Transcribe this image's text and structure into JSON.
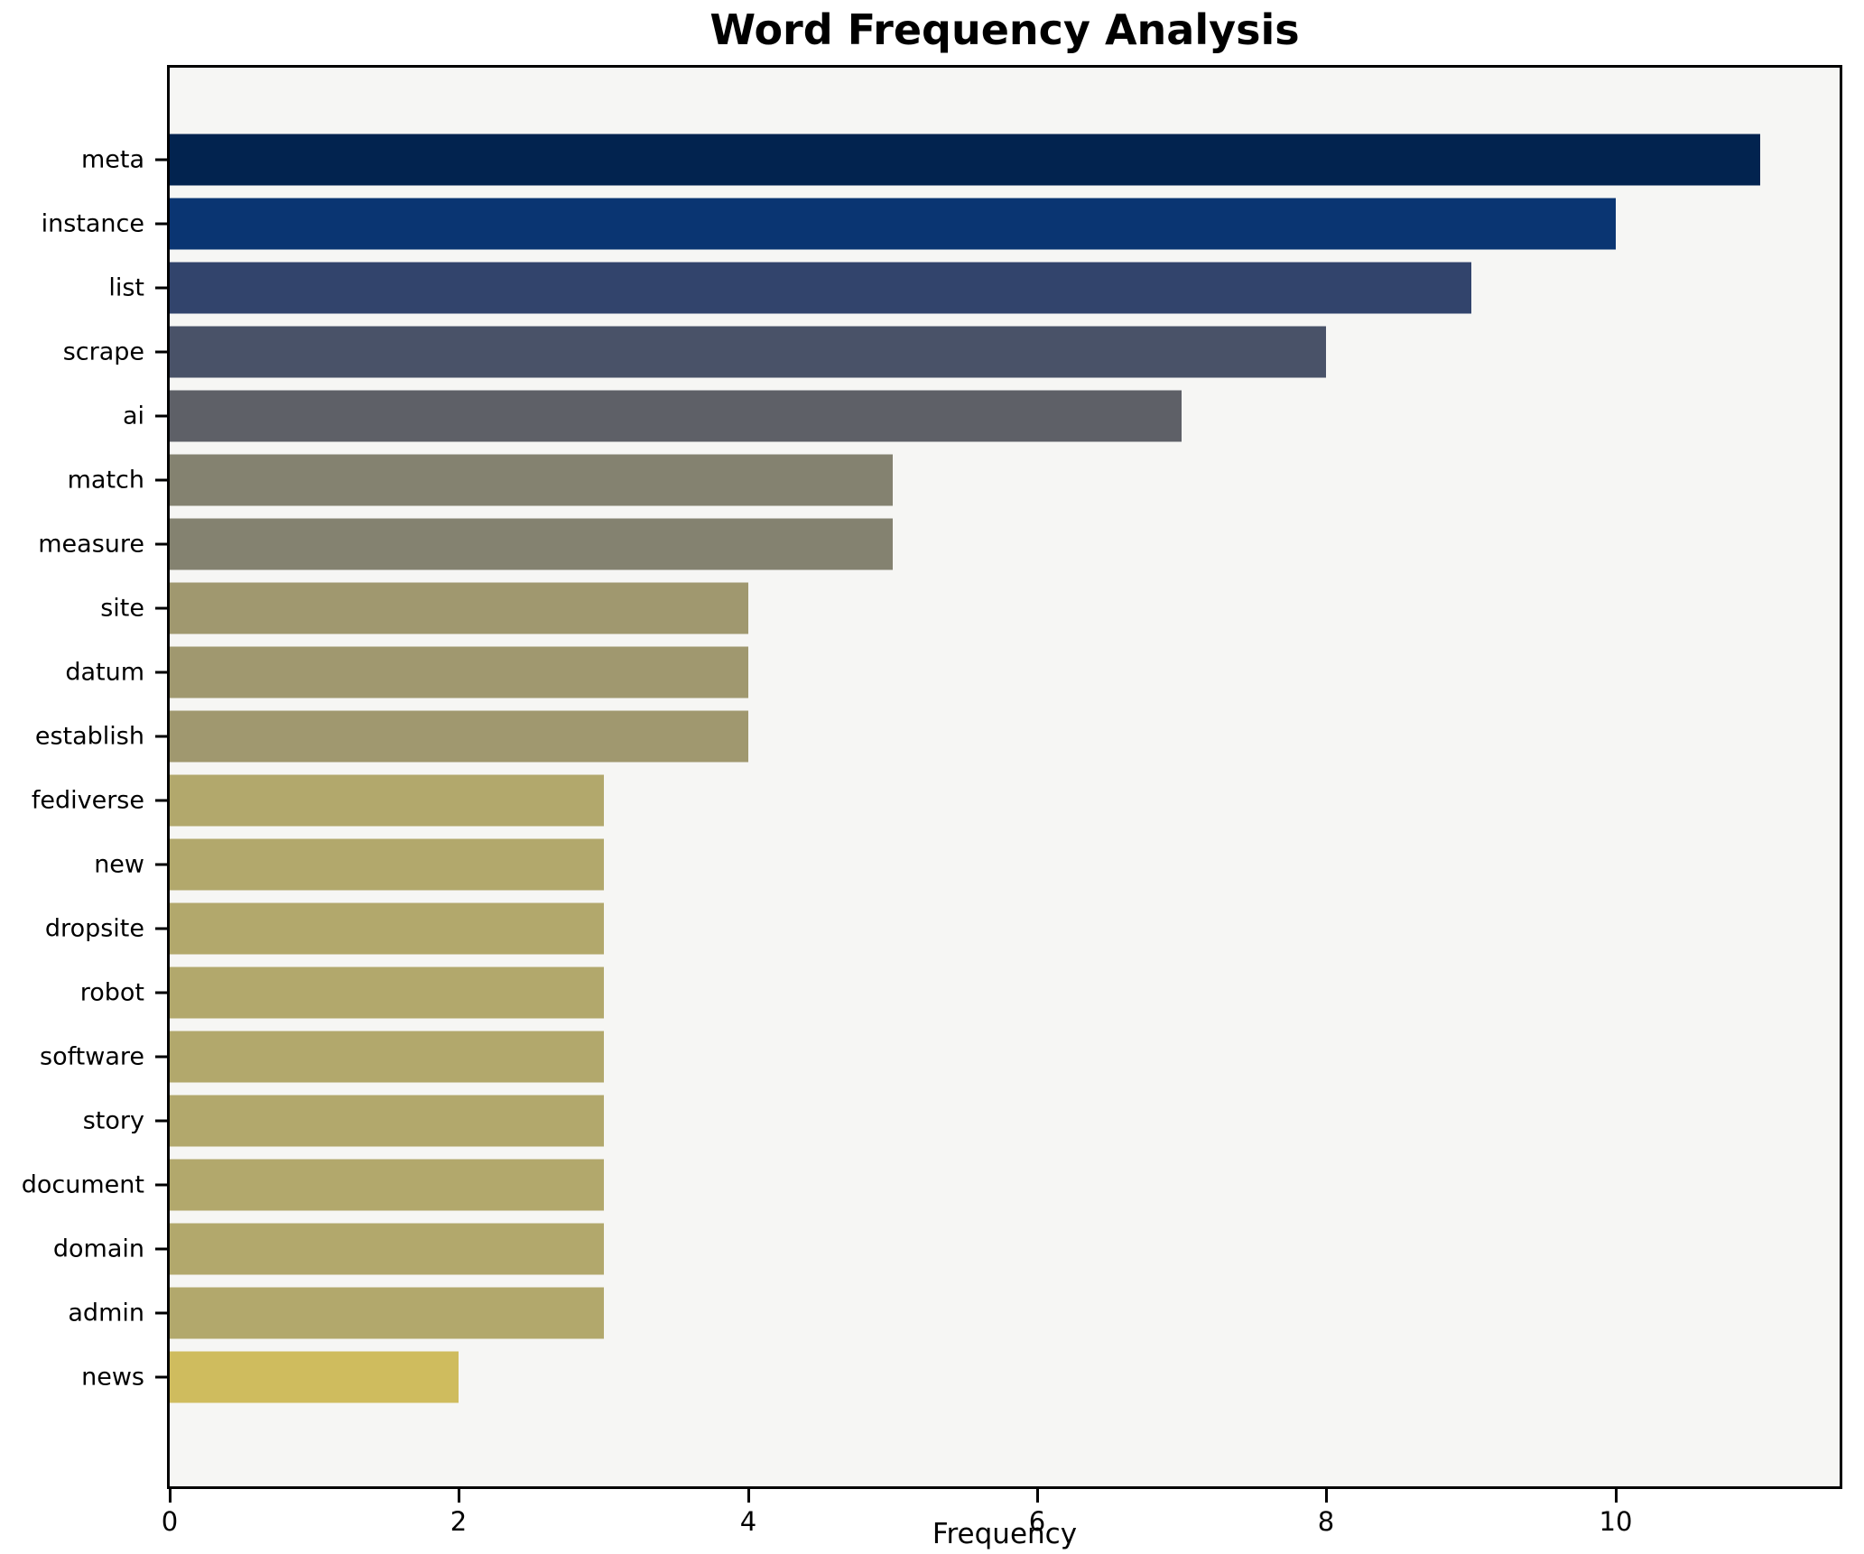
{
  "chart_data": {
    "type": "bar",
    "orientation": "horizontal",
    "title": "Word Frequency Analysis",
    "xlabel": "Frequency",
    "ylabel": "",
    "categories": [
      "meta",
      "instance",
      "list",
      "scrape",
      "ai",
      "match",
      "measure",
      "site",
      "datum",
      "establish",
      "fediverse",
      "new",
      "dropsite",
      "robot",
      "software",
      "story",
      "document",
      "domain",
      "admin",
      "news"
    ],
    "values": [
      11,
      10,
      9,
      8,
      7,
      5,
      5,
      4,
      4,
      4,
      3,
      3,
      3,
      3,
      3,
      3,
      3,
      3,
      3,
      2
    ],
    "bar_colors": [
      "#02234f",
      "#0a3572",
      "#32446c",
      "#495268",
      "#5e6067",
      "#848270",
      "#848270",
      "#a0986f",
      "#a0986f",
      "#a0986f",
      "#b2a86c",
      "#b2a86c",
      "#b2a86c",
      "#b2a86c",
      "#b2a86c",
      "#b2a86c",
      "#b2a86c",
      "#b2a86c",
      "#b2a86c",
      "#cfbc5e"
    ],
    "colormap": "cividis",
    "xticks": [
      0,
      2,
      4,
      6,
      8,
      10
    ],
    "xlim": [
      0,
      11.55
    ],
    "grid": false,
    "legend_position": "none",
    "plot_background": "#f6f6f4",
    "figure_background": "#ffffff",
    "axis_color": "#000000"
  }
}
